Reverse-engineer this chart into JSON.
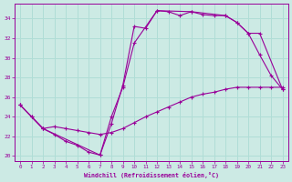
{
  "xlabel": "Windchill (Refroidissement éolien,°C)",
  "xlim": [
    -0.5,
    23.5
  ],
  "ylim": [
    19.5,
    35.5
  ],
  "yticks": [
    20,
    22,
    24,
    26,
    28,
    30,
    32,
    34
  ],
  "xticks": [
    0,
    1,
    2,
    3,
    4,
    5,
    6,
    7,
    8,
    9,
    10,
    11,
    12,
    13,
    14,
    15,
    16,
    17,
    18,
    19,
    20,
    21,
    22,
    23
  ],
  "background_color": "#cceae4",
  "line_color": "#990099",
  "grid_color": "#b0ddd6",
  "line1_x": [
    0,
    1,
    2,
    3,
    4,
    5,
    6,
    7,
    8,
    9,
    10,
    11,
    12,
    13,
    14,
    15,
    16,
    17,
    18,
    19,
    20,
    21,
    22,
    23
  ],
  "line1_y": [
    25.2,
    24.0,
    22.8,
    22.2,
    21.5,
    21.1,
    20.4,
    20.1,
    23.3,
    27.2,
    33.2,
    33.0,
    34.8,
    34.7,
    34.3,
    34.7,
    34.4,
    34.3,
    34.3,
    33.6,
    32.5,
    30.3,
    28.2,
    26.8
  ],
  "line2_x": [
    0,
    2,
    7,
    8,
    9,
    10,
    12,
    15,
    18,
    19,
    20,
    21,
    23
  ],
  "line2_y": [
    25.2,
    22.8,
    20.1,
    24.0,
    27.0,
    31.5,
    34.8,
    34.7,
    34.3,
    33.6,
    32.5,
    32.5,
    26.8
  ],
  "line3_x": [
    0,
    1,
    2,
    3,
    4,
    5,
    6,
    7,
    8,
    9,
    10,
    11,
    12,
    13,
    14,
    15,
    16,
    17,
    18,
    19,
    20,
    21,
    22,
    23
  ],
  "line3_y": [
    25.2,
    24.0,
    22.8,
    23.0,
    22.8,
    22.6,
    22.4,
    22.2,
    22.4,
    22.8,
    23.4,
    24.0,
    24.5,
    25.0,
    25.5,
    26.0,
    26.3,
    26.5,
    26.8,
    27.0,
    27.0,
    27.0,
    27.0,
    27.0
  ]
}
